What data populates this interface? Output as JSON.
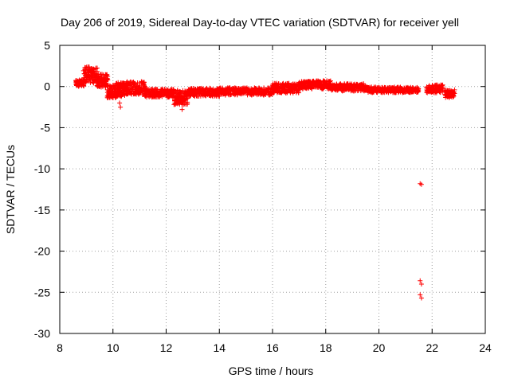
{
  "chart_data": {
    "type": "scatter",
    "title": "Day 206 of 2019, Sidereal Day-to-day VTEC variation (SDTVAR) for receiver yell",
    "xlabel": "GPS time / hours",
    "ylabel": "SDTVAR / TECUs",
    "xlim": [
      8,
      24
    ],
    "ylim": [
      -30,
      5
    ],
    "xticks": [
      8,
      10,
      12,
      14,
      16,
      18,
      20,
      22,
      24
    ],
    "yticks": [
      5,
      0,
      -5,
      -10,
      -15,
      -20,
      -25,
      -30
    ],
    "grid": true,
    "marker": "+",
    "colors": {
      "series": "#ff0000",
      "grid": "#a0a0a0",
      "axis": "#000000"
    },
    "series": [
      {
        "name": "SDTVAR",
        "segments": [
          {
            "x_start": 8.6,
            "x_end": 8.9,
            "step": 0.03,
            "y_mid": 0.4,
            "y_spread": 0.8
          },
          {
            "x_start": 8.9,
            "x_end": 9.4,
            "step": 0.025,
            "y_mid": 1.4,
            "y_spread": 2.0
          },
          {
            "x_start": 9.4,
            "x_end": 9.8,
            "step": 0.025,
            "y_mid": 0.7,
            "y_spread": 1.6
          },
          {
            "x_start": 9.8,
            "x_end": 10.1,
            "step": 0.025,
            "y_mid": -0.6,
            "y_spread": 1.6
          },
          {
            "x_start": 10.1,
            "x_end": 10.5,
            "step": 0.025,
            "y_mid": -0.4,
            "y_spread": 1.8
          },
          {
            "x_start": 10.5,
            "x_end": 11.2,
            "step": 0.03,
            "y_mid": -0.2,
            "y_spread": 1.6
          },
          {
            "x_start": 11.2,
            "x_end": 12.3,
            "step": 0.03,
            "y_mid": -0.8,
            "y_spread": 1.0
          },
          {
            "x_start": 12.3,
            "x_end": 12.8,
            "step": 0.025,
            "y_mid": -1.3,
            "y_spread": 1.8
          },
          {
            "x_start": 12.8,
            "x_end": 14.0,
            "step": 0.03,
            "y_mid": -0.7,
            "y_spread": 1.0
          },
          {
            "x_start": 14.0,
            "x_end": 16.0,
            "step": 0.035,
            "y_mid": -0.6,
            "y_spread": 0.9
          },
          {
            "x_start": 16.0,
            "x_end": 17.0,
            "step": 0.03,
            "y_mid": -0.2,
            "y_spread": 1.2
          },
          {
            "x_start": 17.0,
            "x_end": 18.2,
            "step": 0.03,
            "y_mid": 0.2,
            "y_spread": 1.0
          },
          {
            "x_start": 18.2,
            "x_end": 19.5,
            "step": 0.035,
            "y_mid": -0.1,
            "y_spread": 0.9
          },
          {
            "x_start": 19.5,
            "x_end": 21.5,
            "step": 0.035,
            "y_mid": -0.4,
            "y_spread": 0.7
          },
          {
            "x_start": 21.8,
            "x_end": 22.4,
            "step": 0.03,
            "y_mid": -0.3,
            "y_spread": 1.0
          },
          {
            "x_start": 22.5,
            "x_end": 22.85,
            "step": 0.03,
            "y_mid": -0.9,
            "y_spread": 1.0
          }
        ],
        "outliers": [
          {
            "x": 10.28,
            "y": -2.5
          },
          {
            "x": 10.25,
            "y": -2.0
          },
          {
            "x": 12.6,
            "y": -2.8
          },
          {
            "x": 21.55,
            "y": -11.8
          },
          {
            "x": 21.6,
            "y": -11.9
          },
          {
            "x": 21.55,
            "y": -23.6
          },
          {
            "x": 21.6,
            "y": -24.0
          },
          {
            "x": 21.55,
            "y": -25.3
          },
          {
            "x": 21.6,
            "y": -25.7
          }
        ]
      }
    ]
  }
}
